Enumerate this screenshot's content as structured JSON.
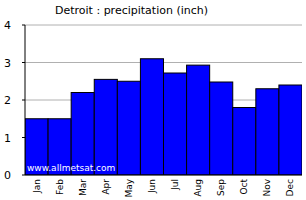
{
  "chart_data": {
    "type": "bar",
    "title": "Detroit : precipitation (inch)",
    "categories": [
      "Jan",
      "Feb",
      "Mar",
      "Apr",
      "May",
      "Jun",
      "Jul",
      "Aug",
      "Sep",
      "Oct",
      "Nov",
      "Dec"
    ],
    "values": [
      1.5,
      1.5,
      2.2,
      2.55,
      2.5,
      3.1,
      2.72,
      2.93,
      2.48,
      1.8,
      2.3,
      2.4
    ],
    "color": "#0000ff",
    "ylim": [
      0,
      4
    ],
    "yticks": [
      0,
      1,
      2,
      3,
      4
    ],
    "grid": true,
    "annotations": [
      "www.allmetsat.com"
    ]
  }
}
